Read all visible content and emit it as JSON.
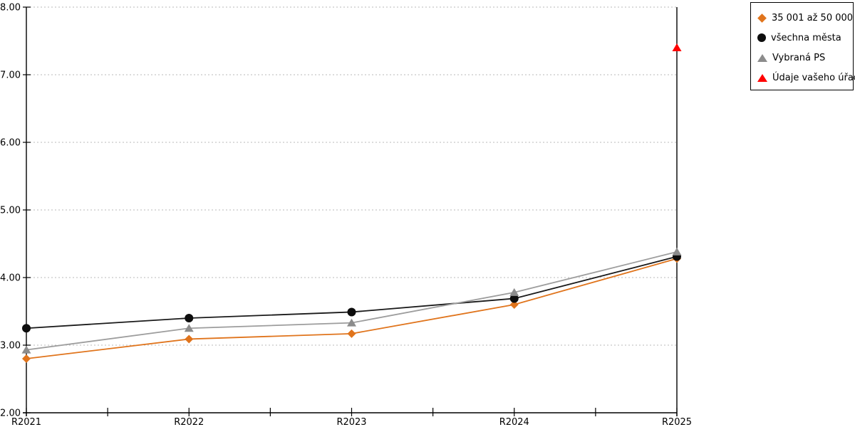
{
  "chart_data": {
    "type": "line",
    "categories": [
      "R2021",
      "R2022",
      "R2023",
      "R2024",
      "R2025"
    ],
    "series": [
      {
        "name": "35 001 až 50 000",
        "marker": "diamond",
        "color": "#E0741C",
        "line_color": "#E0741C",
        "values": [
          2.8,
          3.09,
          3.17,
          3.6,
          4.28
        ]
      },
      {
        "name": "všechna města",
        "marker": "circle",
        "color": "#0D0D0D",
        "line_color": "#1A1A1A",
        "values": [
          3.25,
          3.4,
          3.49,
          3.69,
          4.31
        ]
      },
      {
        "name": "Vybraná PS",
        "marker": "triangle",
        "color": "#8C8C8C",
        "line_color": "#9D9D9D",
        "values": [
          2.93,
          3.25,
          3.33,
          3.78,
          4.38
        ]
      },
      {
        "name": "Údaje vašeho úřadu",
        "marker": "triangle",
        "color": "#FF0000",
        "line_color": "#FF0000",
        "show_line": false,
        "values": [
          null,
          null,
          null,
          null,
          7.4
        ]
      }
    ],
    "title": "",
    "xlabel": "",
    "ylabel": "",
    "ylim": [
      2.0,
      8.0
    ],
    "ytick_step": 1.0,
    "ytick_labels": [
      "2.00",
      "3.00",
      "4.00",
      "5.00",
      "6.00",
      "7.00",
      "8.00"
    ],
    "grid": "horizontal-dotted",
    "gridline_color": "#B8B8B8",
    "axis_color": "#000000",
    "legend_position": "top-right",
    "legend_border_color": "#000000"
  }
}
